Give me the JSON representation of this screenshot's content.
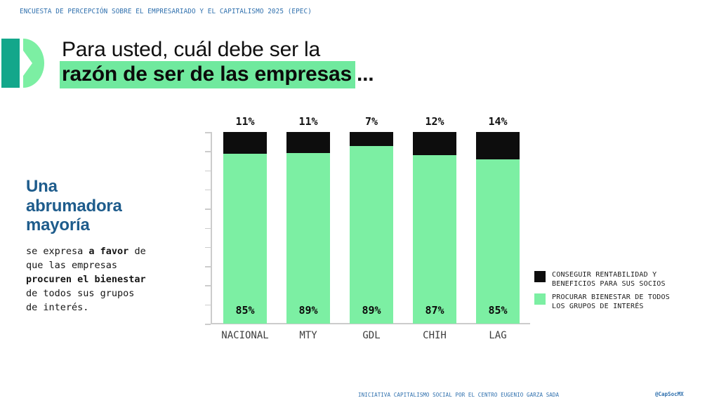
{
  "colors": {
    "blue_accent": "#2E6FAD",
    "heading_blue": "#1E5C8C",
    "highlight_green": "#70E99E",
    "bar_green": "#7CEFA3",
    "bar_black": "#0D0D0D",
    "logo_teal": "#13A78B",
    "logo_green": "#7CEFA3",
    "axis_gray": "#CCCCCC"
  },
  "eyebrow": "ENCUESTA DE PERCEPCIÓN SOBRE EL EMPRESARIADO Y EL CAPITALISMO 2025 (EPEC)",
  "title": {
    "line1": "Para usted, cuál debe ser la",
    "line2_highlight": "razón de ser de las empresas",
    "line2_suffix": "..."
  },
  "aside": {
    "heading_lines": [
      "Una",
      "abrumadora",
      "mayoría"
    ],
    "body_segments": [
      {
        "text": "se expresa ",
        "bold": false
      },
      {
        "text": "a favor",
        "bold": true
      },
      {
        "text": " de que las empresas ",
        "bold": false
      },
      {
        "text": "procuren el bienestar",
        "bold": true
      },
      {
        "text": " de todos sus grupos de interés.",
        "bold": false
      }
    ]
  },
  "chart_data": {
    "type": "bar",
    "stacked": true,
    "normalized": "100%",
    "title": "Para usted, cuál debe ser la razón de ser de las empresas...",
    "categories": [
      "NACIONAL",
      "MTY",
      "GDL",
      "CHIH",
      "LAG"
    ],
    "series": [
      {
        "name": "CONSEGUIR RENTABILIDAD Y BENEFICIOS PARA SUS SOCIOS",
        "color": "#0D0D0D",
        "values": [
          11,
          11,
          7,
          12,
          14
        ]
      },
      {
        "name": "PROCURAR BIENESTAR DE TODOS LOS GRUPOS DE INTERÉS",
        "color": "#7CEFA3",
        "values": [
          85,
          89,
          89,
          87,
          85
        ]
      }
    ],
    "value_suffix": "%",
    "ylim": [
      0,
      100
    ],
    "axis": {
      "tick_count": 11,
      "tick_labels_visible": false
    },
    "grid": false,
    "legend_position": "right",
    "top_labels_series": "CONSEGUIR RENTABILIDAD Y BENEFICIOS PARA SUS SOCIOS",
    "inner_labels_series": "PROCURAR BIENESTAR DE TODOS LOS GRUPOS DE INTERÉS"
  },
  "footer": {
    "credit": "INICIATIVA CAPITALISMO SOCIAL POR EL CENTRO EUGENIO GARZA SADA",
    "handle": "@CapSocMX"
  }
}
